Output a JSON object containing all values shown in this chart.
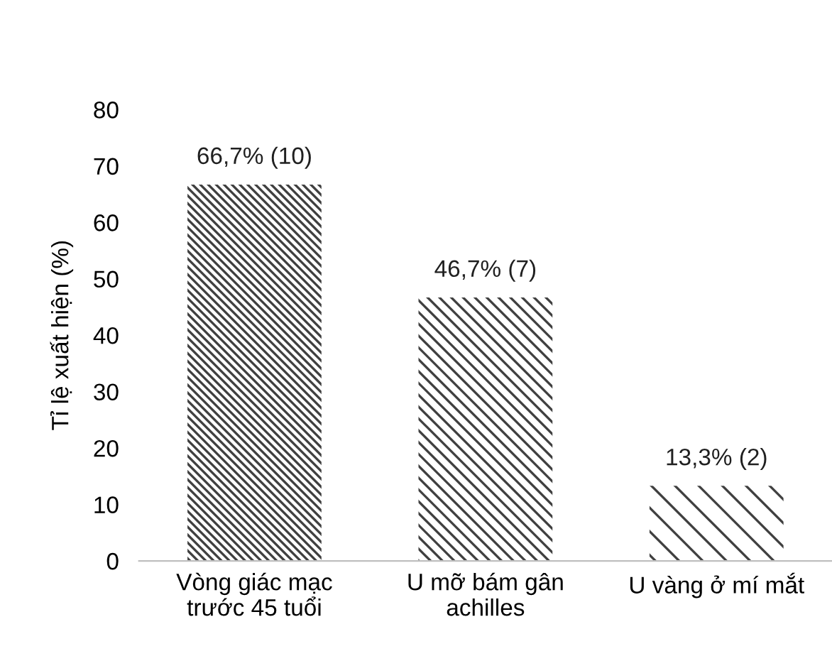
{
  "chart_data": {
    "type": "bar",
    "ylabel": "Tỉ lệ xuất hiện (%)",
    "categories": [
      "Vòng giác mạc\ntrước 45 tuổi",
      "U mỡ bám gân\nachilles",
      "U vàng ở mí mắt"
    ],
    "values": [
      66.7,
      46.7,
      13.3
    ],
    "colors": [
      "#404040",
      "#404040",
      "#404040"
    ],
    "value_labels": [
      "66,7% (10)",
      "46,7% (7)",
      "13,3% (2)"
    ],
    "ylim": [
      0,
      80
    ],
    "yticks": [
      0,
      10,
      20,
      30,
      40,
      50,
      60,
      70,
      80
    ],
    "grid": false,
    "legend": false
  }
}
